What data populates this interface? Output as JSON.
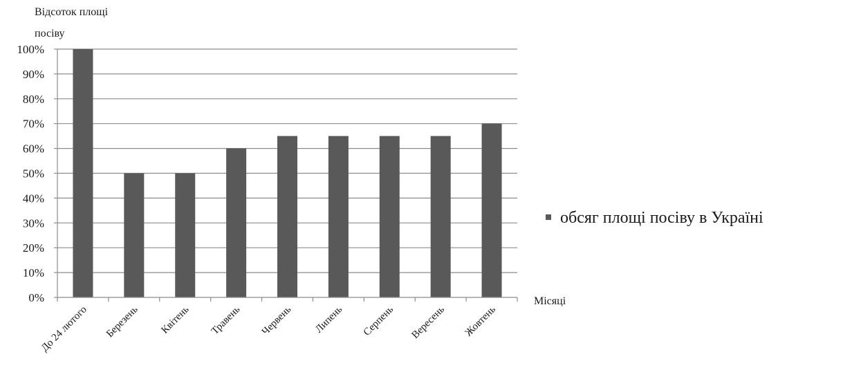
{
  "chart_data": {
    "type": "bar",
    "title": "",
    "ylabel_lines": [
      "Відсоток площі",
      "посіву"
    ],
    "xlabel": "Місяці",
    "categories": [
      "До 24 лютого",
      "Березень",
      "Квітень",
      "Травень",
      "Червень",
      "Липень",
      "Серпень",
      "Вересень",
      "Жовтень"
    ],
    "series": [
      {
        "name": "обсяг площі посіву в Україні",
        "values": [
          100,
          50,
          50,
          60,
          65,
          65,
          65,
          65,
          70
        ]
      }
    ],
    "ylim": [
      0,
      100
    ],
    "yticks": [
      "0%",
      "10%",
      "20%",
      "30%",
      "40%",
      "50%",
      "60%",
      "70%",
      "80%",
      "90%",
      "100%"
    ],
    "grid": true,
    "legend_position": "right",
    "colors": {
      "bar": "#595959",
      "grid": "#8c8c8c",
      "axis": "#8c8c8c",
      "text": "#1a1a1a"
    }
  }
}
